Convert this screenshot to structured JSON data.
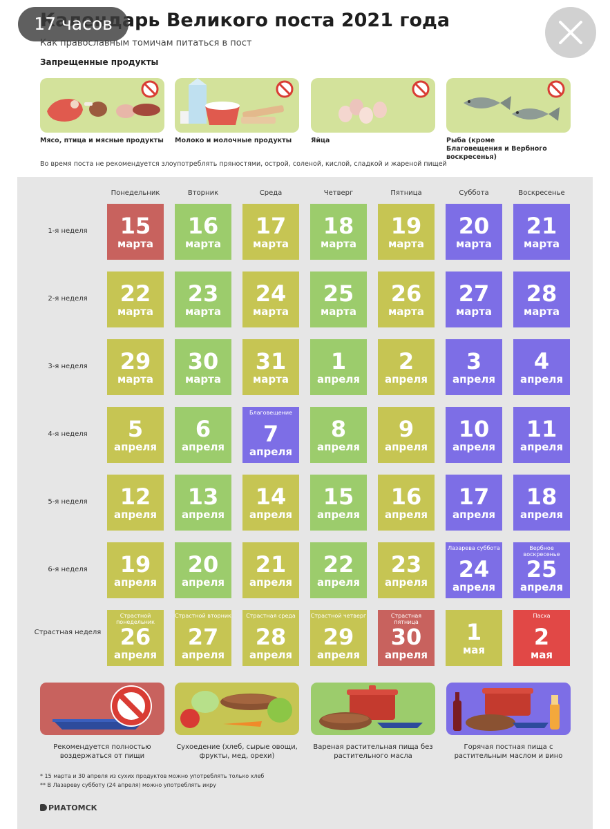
{
  "status": {
    "time": "17 часов"
  },
  "header": {
    "title": "Календарь Великого поста 2021 года",
    "subtitle": "Как православным томичам питаться в пост",
    "forbidden_heading": "Запрещенные продукты"
  },
  "forbidden_foods": [
    {
      "label": "Мясо, птица и мясные продукты"
    },
    {
      "label": "Молоко и молочные продукты"
    },
    {
      "label": "Яйца"
    },
    {
      "label": "Рыба (кроме Благовещения и Вербного воскресенья)"
    }
  ],
  "note": "Во время поста не рекомендуется злоупотреблять пряностями, острой, соленой, кислой, сладкой и жареной пищей",
  "colors": {
    "red": "#c8625e",
    "green": "#9ccc6c",
    "yellow": "#c6c553",
    "purple": "#7d6ee6",
    "brightred": "#e14846"
  },
  "calendar": {
    "days": [
      "Понедельник",
      "Вторник",
      "Среда",
      "Четверг",
      "Пятница",
      "Суббота",
      "Воскресенье"
    ],
    "weeks": [
      {
        "label": "1-я неделя",
        "cells": [
          {
            "num": "15",
            "month": "марта",
            "color": "red"
          },
          {
            "num": "16",
            "month": "марта",
            "color": "green"
          },
          {
            "num": "17",
            "month": "марта",
            "color": "yellow"
          },
          {
            "num": "18",
            "month": "марта",
            "color": "green"
          },
          {
            "num": "19",
            "month": "марта",
            "color": "yellow"
          },
          {
            "num": "20",
            "month": "марта",
            "color": "purple"
          },
          {
            "num": "21",
            "month": "марта",
            "color": "purple"
          }
        ]
      },
      {
        "label": "2-я неделя",
        "cells": [
          {
            "num": "22",
            "month": "марта",
            "color": "yellow"
          },
          {
            "num": "23",
            "month": "марта",
            "color": "green"
          },
          {
            "num": "24",
            "month": "марта",
            "color": "yellow"
          },
          {
            "num": "25",
            "month": "марта",
            "color": "green"
          },
          {
            "num": "26",
            "month": "марта",
            "color": "yellow"
          },
          {
            "num": "27",
            "month": "марта",
            "color": "purple"
          },
          {
            "num": "28",
            "month": "марта",
            "color": "purple"
          }
        ]
      },
      {
        "label": "3-я неделя",
        "cells": [
          {
            "num": "29",
            "month": "марта",
            "color": "yellow"
          },
          {
            "num": "30",
            "month": "марта",
            "color": "green"
          },
          {
            "num": "31",
            "month": "марта",
            "color": "yellow"
          },
          {
            "num": "1",
            "month": "апреля",
            "color": "green"
          },
          {
            "num": "2",
            "month": "апреля",
            "color": "yellow"
          },
          {
            "num": "3",
            "month": "апреля",
            "color": "purple"
          },
          {
            "num": "4",
            "month": "апреля",
            "color": "purple"
          }
        ]
      },
      {
        "label": "4-я неделя",
        "cells": [
          {
            "num": "5",
            "month": "апреля",
            "color": "yellow"
          },
          {
            "num": "6",
            "month": "апреля",
            "color": "green"
          },
          {
            "num": "7",
            "month": "апреля",
            "color": "purple",
            "note": "Благовещение"
          },
          {
            "num": "8",
            "month": "апреля",
            "color": "green"
          },
          {
            "num": "9",
            "month": "апреля",
            "color": "yellow"
          },
          {
            "num": "10",
            "month": "апреля",
            "color": "purple"
          },
          {
            "num": "11",
            "month": "апреля",
            "color": "purple"
          }
        ]
      },
      {
        "label": "5-я неделя",
        "cells": [
          {
            "num": "12",
            "month": "апреля",
            "color": "yellow"
          },
          {
            "num": "13",
            "month": "апреля",
            "color": "green"
          },
          {
            "num": "14",
            "month": "апреля",
            "color": "yellow"
          },
          {
            "num": "15",
            "month": "апреля",
            "color": "green"
          },
          {
            "num": "16",
            "month": "апреля",
            "color": "yellow"
          },
          {
            "num": "17",
            "month": "апреля",
            "color": "purple"
          },
          {
            "num": "18",
            "month": "апреля",
            "color": "purple"
          }
        ]
      },
      {
        "label": "6-я неделя",
        "cells": [
          {
            "num": "19",
            "month": "апреля",
            "color": "yellow"
          },
          {
            "num": "20",
            "month": "апреля",
            "color": "green"
          },
          {
            "num": "21",
            "month": "апреля",
            "color": "yellow"
          },
          {
            "num": "22",
            "month": "апреля",
            "color": "green"
          },
          {
            "num": "23",
            "month": "апреля",
            "color": "yellow"
          },
          {
            "num": "24",
            "month": "апреля",
            "color": "purple",
            "note": "Лазарева суббота"
          },
          {
            "num": "25",
            "month": "апреля",
            "color": "purple",
            "note": "Вербное воскресенье"
          }
        ]
      },
      {
        "label": "Страстная неделя",
        "cells": [
          {
            "num": "26",
            "month": "апреля",
            "color": "yellow",
            "note": "Страстной понедельник"
          },
          {
            "num": "27",
            "month": "апреля",
            "color": "yellow",
            "note": "Страстной вторник"
          },
          {
            "num": "28",
            "month": "апреля",
            "color": "yellow",
            "note": "Страстная среда"
          },
          {
            "num": "29",
            "month": "апреля",
            "color": "yellow",
            "note": "Страстной четверг"
          },
          {
            "num": "30",
            "month": "апреля",
            "color": "red",
            "note": "Страстная пятница"
          },
          {
            "num": "1",
            "month": "мая",
            "color": "yellow"
          },
          {
            "num": "2",
            "month": "мая",
            "color": "brightred",
            "note": "Пасха"
          }
        ]
      }
    ]
  },
  "legend": [
    {
      "label": "Рекомендуется полностью воздержаться от пищи"
    },
    {
      "label": "Сухоедение (хлеб, сырые овощи, фрукты, мед, орехи)"
    },
    {
      "label": "Вареная растительная пища без растительного масла"
    },
    {
      "label": "Горячая постная пища с растительным маслом и вино"
    }
  ],
  "footnotes": [
    "* 15 марта и 30 апреля из сухих продуктов можно употреблять только хлеб",
    "** В Лазареву субботу (24 апреля) можно употреблять икру"
  ],
  "logo": "РИАТОМСК"
}
